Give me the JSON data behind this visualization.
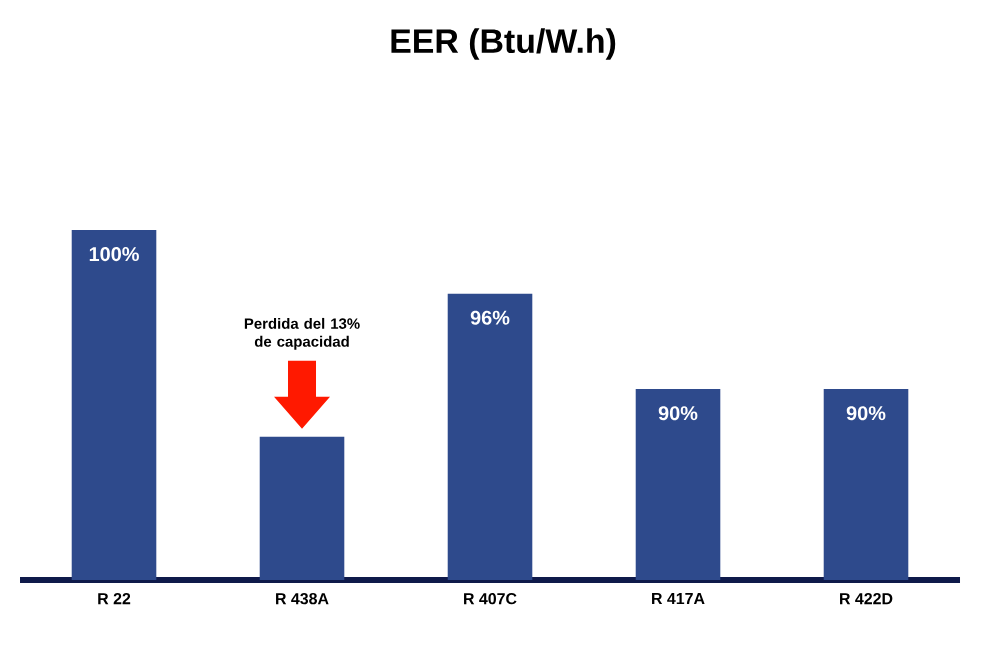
{
  "chart_data": {
    "type": "bar",
    "title": "EER (Btu/W.h)",
    "categories": [
      "R 22",
      "R 438A",
      "R 407C",
      "R 417A",
      "R 422D"
    ],
    "values": [
      100,
      87,
      96,
      90,
      90
    ],
    "value_labels": [
      "100%",
      null,
      "96%",
      "90%",
      "90%"
    ],
    "color": "#2e4a8c",
    "ylim": [
      78,
      100
    ],
    "tick_labels": "x",
    "annotations": [
      "Perdida del 13% de capacidad"
    ]
  }
}
